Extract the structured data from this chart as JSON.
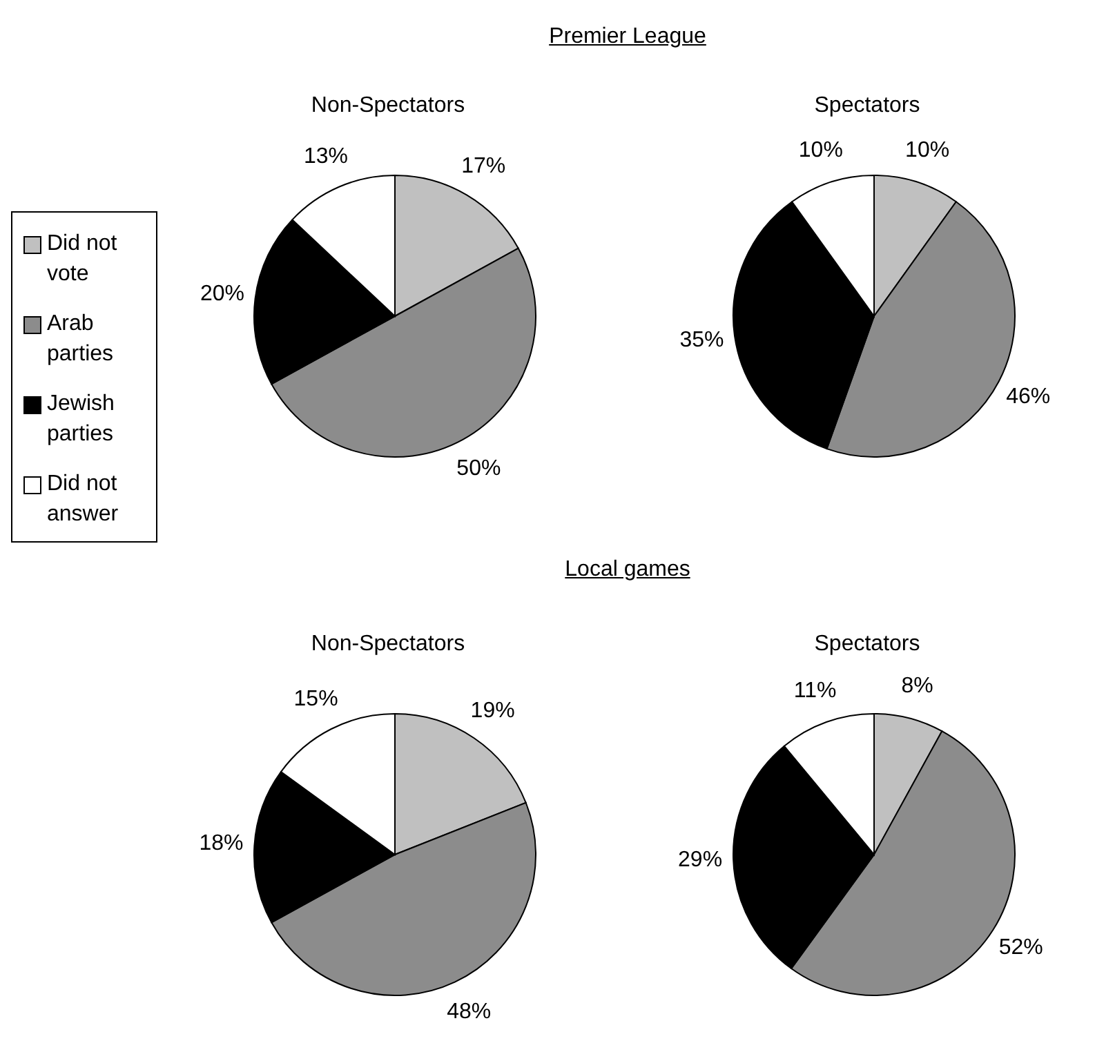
{
  "chart_data": [
    {
      "type": "pie",
      "subtitle": "Premier League",
      "title": "Non-Spectators",
      "categories": [
        "Did not vote",
        "Arab parties",
        "Jewish parties",
        "Did not answer"
      ],
      "values": [
        17,
        50,
        20,
        13
      ],
      "value_labels": [
        "17%",
        "50%",
        "20%",
        "13%"
      ],
      "colors": [
        "#c0c0c0",
        "#8c8c8c",
        "#000000",
        "#ffffff"
      ],
      "legend": "left"
    },
    {
      "type": "pie",
      "title": "Spectators",
      "categories": [
        null,
        null,
        null,
        null
      ],
      "values": [
        10,
        46,
        35,
        10
      ],
      "value_labels": [
        "10%",
        "46%",
        "35%",
        "10%"
      ],
      "colors": [
        "#c0c0c0",
        "#8c8c8c",
        "#000000",
        "#ffffff"
      ]
    },
    {
      "type": "pie",
      "subtitle": "Local games",
      "title": "Non-Spectators",
      "categories": [
        null,
        null,
        null,
        null
      ],
      "values": [
        19,
        48,
        18,
        15
      ],
      "value_labels": [
        "19%",
        "48%",
        "18%",
        "15%"
      ],
      "colors": [
        "#c0c0c0",
        "#8c8c8c",
        "#000000",
        "#ffffff"
      ]
    },
    {
      "type": "pie",
      "title": "Spectators",
      "categories": [
        null,
        null,
        null,
        null
      ],
      "values": [
        8,
        52,
        29,
        11
      ],
      "value_labels": [
        "8%",
        "52%",
        "29%",
        "11%"
      ],
      "colors": [
        "#c0c0c0",
        "#8c8c8c",
        "#000000",
        "#ffffff"
      ]
    }
  ]
}
